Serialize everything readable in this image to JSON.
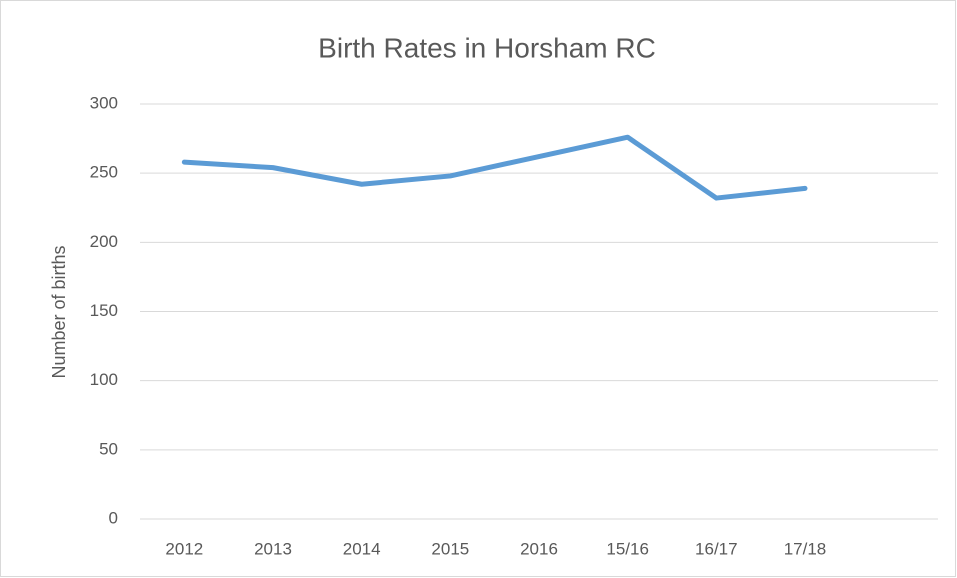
{
  "chart_data": {
    "type": "line",
    "title": "Birth Rates in Horsham RC",
    "y_label": "Number of births",
    "categories": [
      "2012",
      "2013",
      "2014",
      "2015",
      "2016",
      "15/16",
      "16/17",
      "17/18",
      null
    ],
    "series": [
      {
        "name": "Number of births",
        "color": "#5b9bd5",
        "values": [
          258,
          254,
          242,
          248,
          262,
          276,
          232,
          239,
          null
        ]
      }
    ],
    "ylim": [
      0,
      300
    ],
    "yticks": [
      0,
      50,
      100,
      150,
      200,
      250,
      300
    ],
    "grid": true
  }
}
